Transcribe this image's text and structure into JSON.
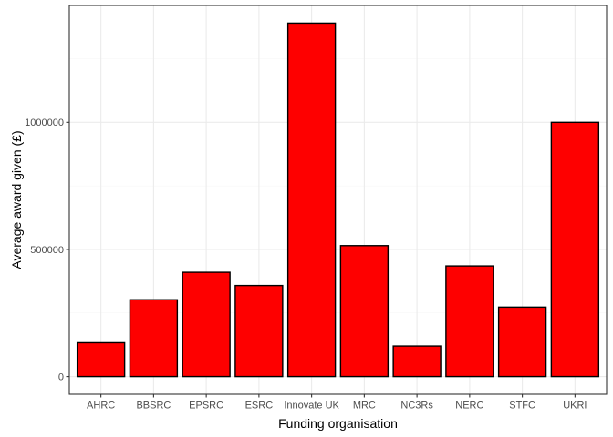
{
  "chart_data": {
    "type": "bar",
    "xlabel": "Funding organisation",
    "ylabel": "Average award given (£)",
    "categories": [
      "AHRC",
      "BBSRC",
      "EPSRC",
      "ESRC",
      "Innovate UK",
      "MRC",
      "NC3Rs",
      "NERC",
      "STFC",
      "UKRI"
    ],
    "values": [
      133000,
      302000,
      410000,
      358000,
      1390000,
      515000,
      120000,
      435000,
      273000,
      1000000
    ],
    "yticks": [
      0,
      500000,
      1000000
    ],
    "ytick_labels": [
      "0",
      "500000",
      "1000000"
    ],
    "ylim": [
      -69500,
      1459500
    ],
    "grid": true,
    "legend": "none",
    "colors": {
      "bar_fill": "#fe0000",
      "bar_stroke": "#000000",
      "grid_major": "#ebebeb",
      "grid_minor": "#f5f5f5",
      "panel_border": "#333333"
    }
  }
}
